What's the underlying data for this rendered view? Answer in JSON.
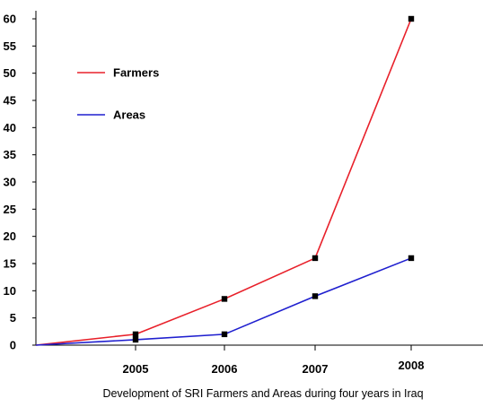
{
  "chart_data": {
    "type": "line",
    "categories": [
      "",
      "2005",
      "2006",
      "2007",
      "2008"
    ],
    "series": [
      {
        "name": "Farmers",
        "color": "#e8202a",
        "values": [
          0,
          2,
          8.5,
          16,
          60
        ]
      },
      {
        "name": "Areas",
        "color": "#1f1fcf",
        "values": [
          0,
          1,
          2,
          9,
          16
        ]
      }
    ],
    "x_tick_labels": [
      "2005",
      "2006",
      "2007",
      "2008"
    ],
    "y_ticks": [
      0,
      5,
      10,
      15,
      20,
      25,
      30,
      35,
      40,
      45,
      50,
      55,
      60
    ],
    "ylim": [
      0,
      60
    ],
    "grid": false,
    "legend_position": "top-left",
    "caption": "Development of SRI Farmers and Areas during four years in Iraq",
    "xlabel": "",
    "ylabel": "",
    "axis_color": "#000000",
    "marker": "square"
  }
}
